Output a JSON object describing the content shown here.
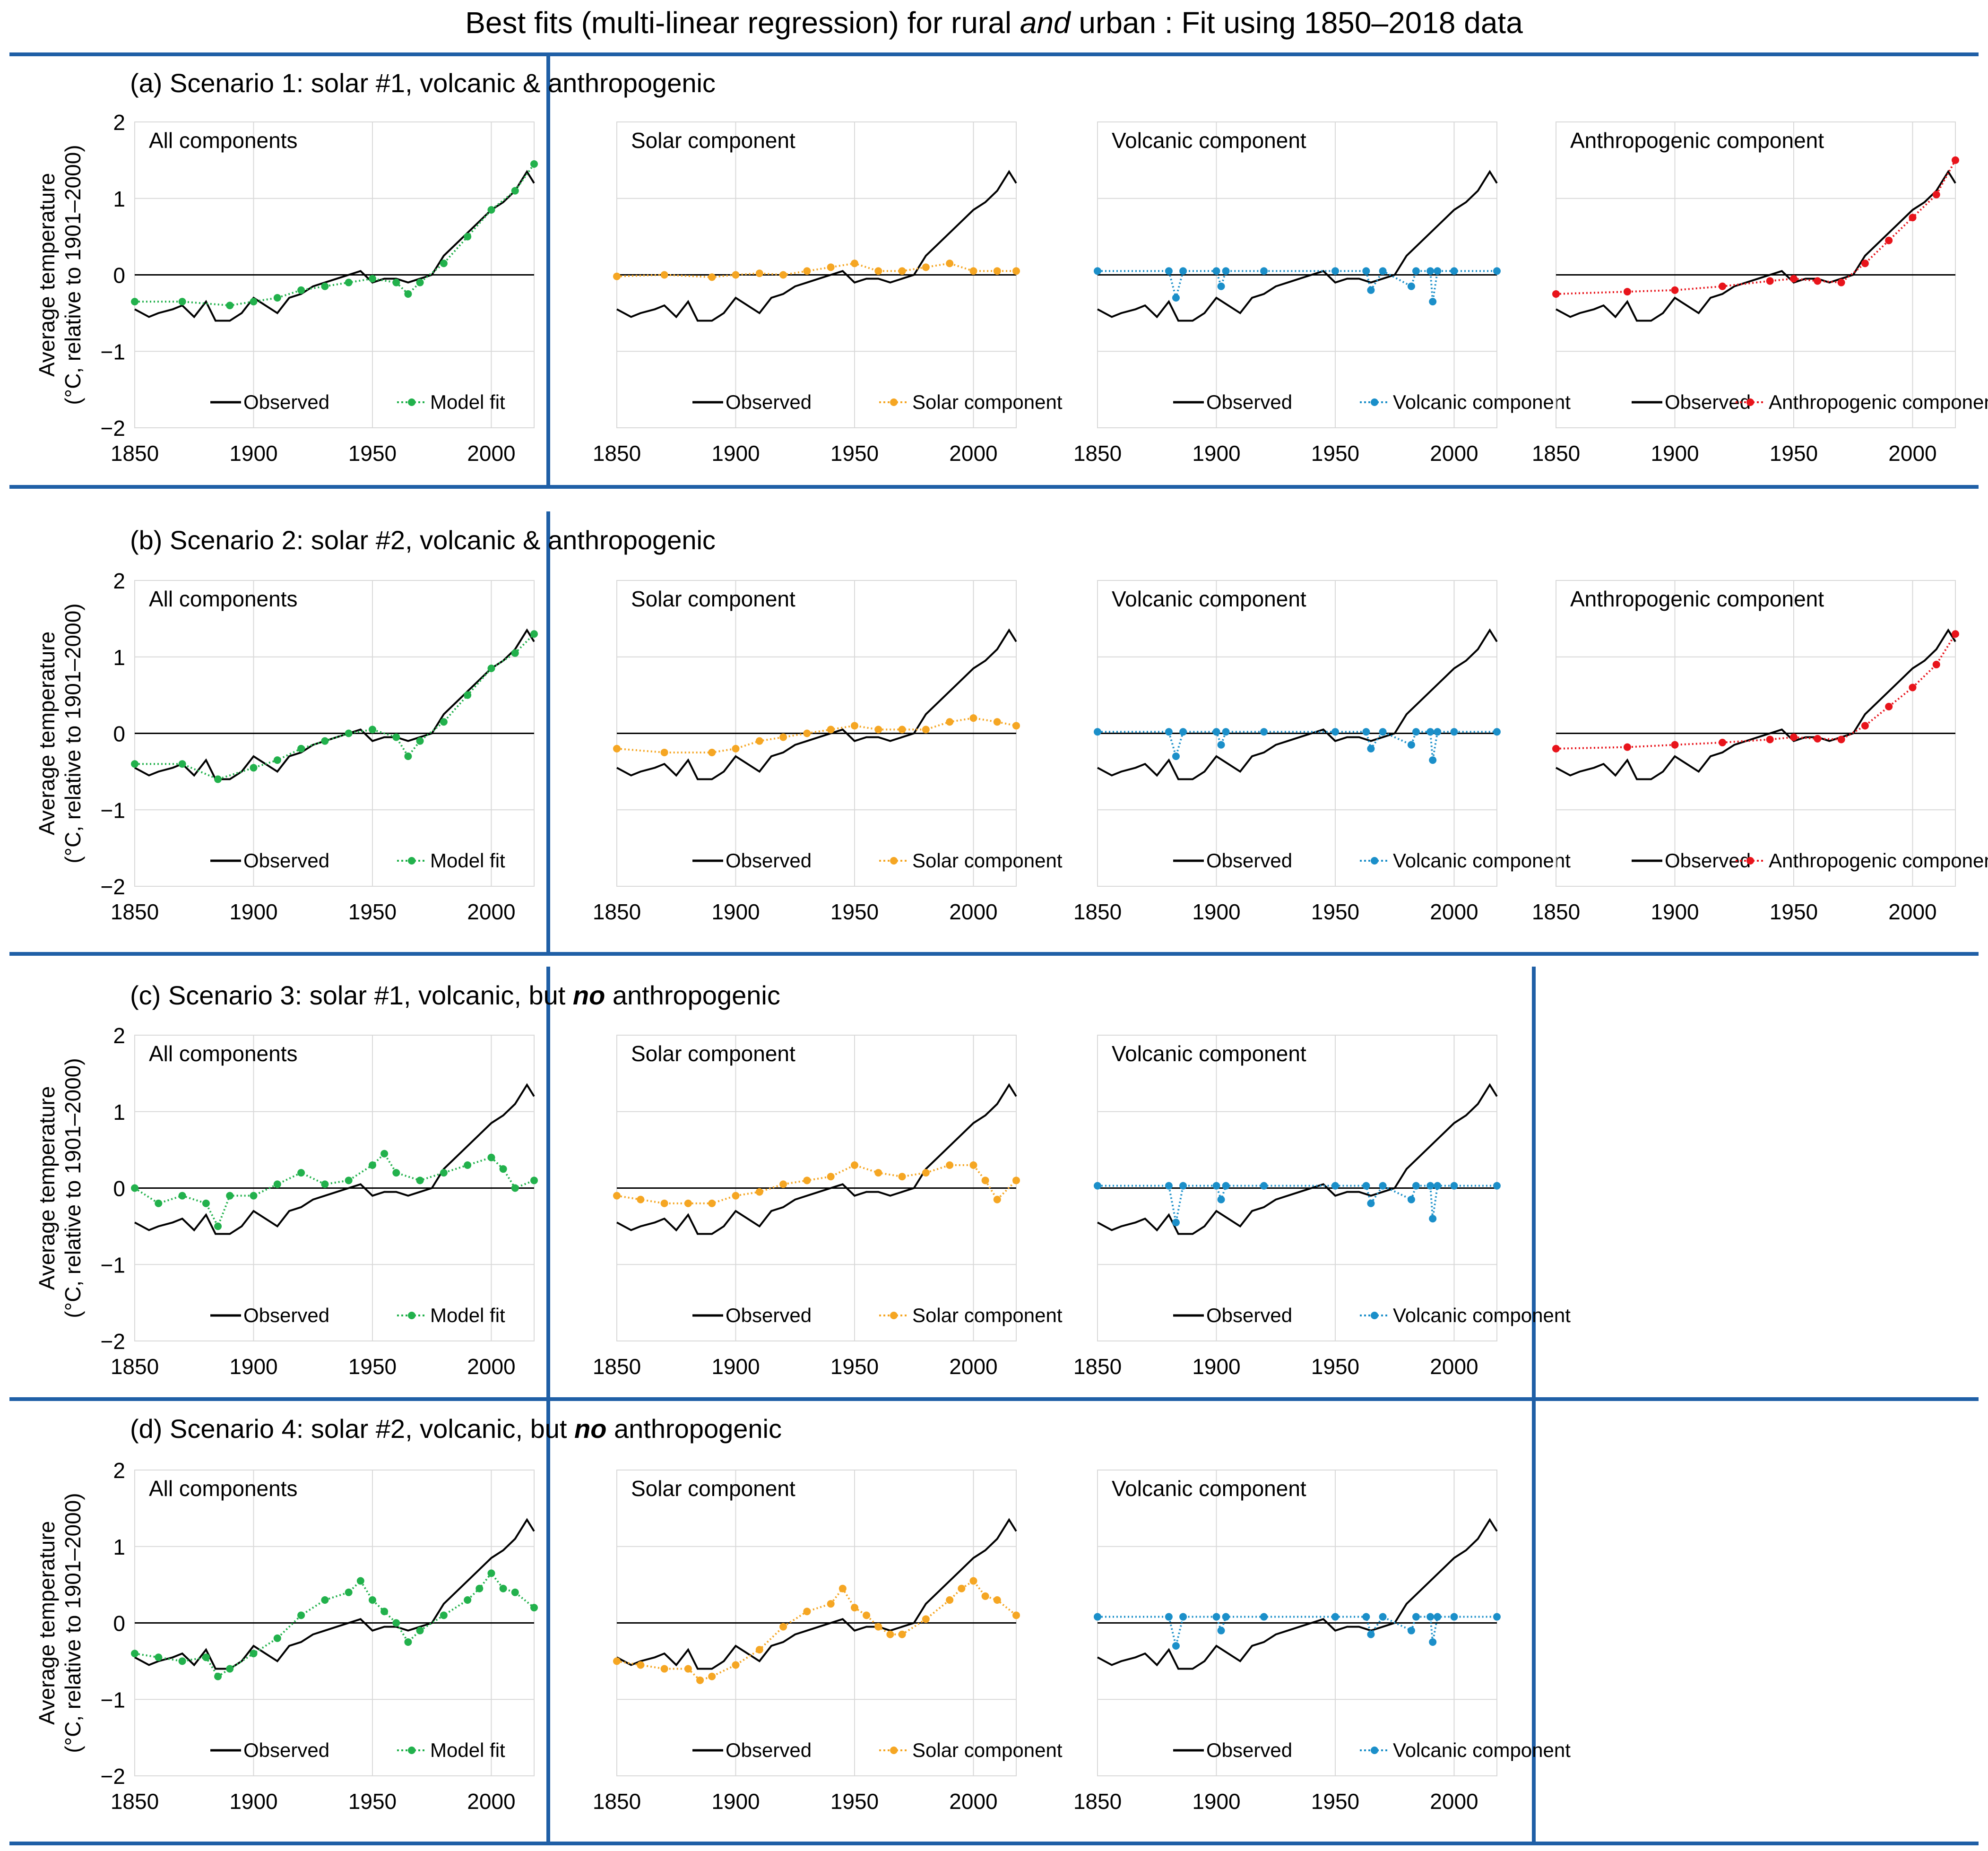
{
  "title": {
    "prefix": "Best fits (multi-linear regression) for rural ",
    "italic": "and",
    "suffix": " urban : Fit using 1850–2018 data"
  },
  "ylabel_line1": "Average temperature",
  "ylabel_line2": "(°C, relative to 1901–2000)",
  "colors": {
    "observed": "#000000",
    "model_fit": "#22b14c",
    "solar": "#f5a623",
    "volcanic": "#1b8fc9",
    "anthropogenic": "#e8141b",
    "frame": "#1f5fa6",
    "grid": "#d9d9d9"
  },
  "rows": [
    {
      "label": "(a) Scenario 1: solar #1, volcanic & anthropogenic",
      "label_pre": "",
      "label_bold": "",
      "label_post": ""
    },
    {
      "label": "(b) Scenario 2: solar #2, volcanic & anthropogenic",
      "label_pre": "",
      "label_bold": "",
      "label_post": ""
    },
    {
      "label": "",
      "label_pre": "(c) Scenario 3: solar #1, volcanic, but ",
      "label_bold": "no",
      "label_post": " anthropogenic"
    },
    {
      "label": "",
      "label_pre": "(d) Scenario 4: solar #2, volcanic, but ",
      "label_bold": "no",
      "label_post": " anthropogenic"
    }
  ],
  "chart_data": {
    "type": "line",
    "x_range": [
      1850,
      2018
    ],
    "xticks": [
      1850,
      1900,
      1950,
      2000
    ],
    "xtick_labels": [
      "1850",
      "1900",
      "1950",
      "2000"
    ],
    "ylim": [
      -2,
      2
    ],
    "yticks": [
      2,
      1,
      0,
      -1,
      -2
    ],
    "ytick_labels": [
      "2",
      "1",
      "0",
      "−1",
      "−2"
    ],
    "observed_series": {
      "name": "Observed",
      "x": [
        1850,
        1856,
        1860,
        1866,
        1870,
        1875,
        1880,
        1884,
        1890,
        1895,
        1900,
        1905,
        1910,
        1915,
        1920,
        1925,
        1930,
        1935,
        1940,
        1945,
        1950,
        1955,
        1960,
        1965,
        1970,
        1975,
        1980,
        1985,
        1990,
        1995,
        2000,
        2005,
        2010,
        2015,
        2018
      ],
      "values": [
        -0.45,
        -0.55,
        -0.5,
        -0.45,
        -0.4,
        -0.55,
        -0.35,
        -0.6,
        -0.6,
        -0.5,
        -0.3,
        -0.4,
        -0.5,
        -0.3,
        -0.25,
        -0.15,
        -0.1,
        -0.05,
        0.0,
        0.05,
        -0.1,
        -0.05,
        -0.05,
        -0.1,
        -0.05,
        0.0,
        0.25,
        0.4,
        0.55,
        0.7,
        0.85,
        0.95,
        1.1,
        1.35,
        1.2
      ]
    },
    "panels": [
      {
        "row": 0,
        "title": "All components",
        "legend": [
          "Observed",
          "Model fit"
        ],
        "series": "model_fit",
        "x": [
          1850,
          1870,
          1890,
          1900,
          1910,
          1920,
          1930,
          1940,
          1950,
          1960,
          1965,
          1970,
          1980,
          1990,
          2000,
          2010,
          2018
        ],
        "values": [
          -0.35,
          -0.35,
          -0.4,
          -0.35,
          -0.3,
          -0.2,
          -0.15,
          -0.1,
          -0.05,
          -0.1,
          -0.25,
          -0.1,
          0.15,
          0.5,
          0.85,
          1.1,
          1.45
        ]
      },
      {
        "row": 0,
        "title": "Solar component",
        "legend": [
          "Observed",
          "Solar component"
        ],
        "series": "solar",
        "x": [
          1850,
          1870,
          1890,
          1900,
          1910,
          1920,
          1930,
          1940,
          1950,
          1960,
          1970,
          1980,
          1990,
          2000,
          2010,
          2018
        ],
        "values": [
          -0.02,
          0.0,
          -0.03,
          0.0,
          0.02,
          0.0,
          0.05,
          0.1,
          0.15,
          0.05,
          0.05,
          0.1,
          0.15,
          0.05,
          0.05,
          0.05
        ]
      },
      {
        "row": 0,
        "title": "Volcanic component",
        "legend": [
          "Observed",
          "Volcanic component"
        ],
        "series": "volcanic",
        "x": [
          1850,
          1880,
          1883,
          1886,
          1900,
          1902,
          1904,
          1920,
          1950,
          1963,
          1965,
          1970,
          1982,
          1984,
          1990,
          1991,
          1993,
          2000,
          2018
        ],
        "values": [
          0.05,
          0.05,
          -0.3,
          0.05,
          0.05,
          -0.15,
          0.05,
          0.05,
          0.05,
          0.05,
          -0.2,
          0.05,
          -0.15,
          0.05,
          0.05,
          -0.35,
          0.05,
          0.05,
          0.05
        ]
      },
      {
        "row": 0,
        "title": "Anthropogenic component",
        "legend": [
          "Observed",
          "Anthropogenic component"
        ],
        "series": "anthropogenic",
        "x": [
          1850,
          1880,
          1900,
          1920,
          1940,
          1950,
          1960,
          1970,
          1980,
          1990,
          2000,
          2010,
          2018
        ],
        "values": [
          -0.25,
          -0.22,
          -0.2,
          -0.15,
          -0.08,
          -0.05,
          -0.08,
          -0.1,
          0.15,
          0.45,
          0.75,
          1.05,
          1.5
        ]
      },
      {
        "row": 1,
        "title": "All components",
        "legend": [
          "Observed",
          "Model fit"
        ],
        "series": "model_fit",
        "x": [
          1850,
          1870,
          1885,
          1900,
          1910,
          1920,
          1930,
          1940,
          1950,
          1960,
          1965,
          1970,
          1980,
          1990,
          2000,
          2010,
          2018
        ],
        "values": [
          -0.4,
          -0.4,
          -0.6,
          -0.45,
          -0.35,
          -0.2,
          -0.1,
          0.0,
          0.05,
          -0.05,
          -0.3,
          -0.1,
          0.15,
          0.5,
          0.85,
          1.05,
          1.3
        ]
      },
      {
        "row": 1,
        "title": "Solar component",
        "legend": [
          "Observed",
          "Solar component"
        ],
        "series": "solar",
        "x": [
          1850,
          1870,
          1890,
          1900,
          1910,
          1920,
          1930,
          1940,
          1950,
          1960,
          1970,
          1980,
          1990,
          2000,
          2010,
          2018
        ],
        "values": [
          -0.2,
          -0.25,
          -0.25,
          -0.2,
          -0.1,
          -0.05,
          0.0,
          0.05,
          0.1,
          0.05,
          0.05,
          0.05,
          0.15,
          0.2,
          0.15,
          0.1
        ]
      },
      {
        "row": 1,
        "title": "Volcanic component",
        "legend": [
          "Observed",
          "Volcanic component"
        ],
        "series": "volcanic",
        "x": [
          1850,
          1880,
          1883,
          1886,
          1900,
          1902,
          1904,
          1920,
          1950,
          1963,
          1965,
          1970,
          1982,
          1984,
          1990,
          1991,
          1993,
          2000,
          2018
        ],
        "values": [
          0.02,
          0.02,
          -0.3,
          0.02,
          0.02,
          -0.15,
          0.02,
          0.02,
          0.02,
          0.02,
          -0.2,
          0.02,
          -0.15,
          0.02,
          0.02,
          -0.35,
          0.02,
          0.02,
          0.02
        ]
      },
      {
        "row": 1,
        "title": "Anthropogenic component",
        "legend": [
          "Observed",
          "Anthropogenic component"
        ],
        "series": "anthropogenic",
        "x": [
          1850,
          1880,
          1900,
          1920,
          1940,
          1950,
          1960,
          1970,
          1980,
          1990,
          2000,
          2010,
          2018
        ],
        "values": [
          -0.2,
          -0.18,
          -0.15,
          -0.12,
          -0.08,
          -0.05,
          -0.07,
          -0.08,
          0.1,
          0.35,
          0.6,
          0.9,
          1.3
        ]
      },
      {
        "row": 2,
        "title": "All components",
        "legend": [
          "Observed",
          "Model fit"
        ],
        "series": "model_fit",
        "x": [
          1850,
          1860,
          1870,
          1880,
          1885,
          1890,
          1900,
          1910,
          1920,
          1930,
          1940,
          1950,
          1955,
          1960,
          1970,
          1980,
          1990,
          2000,
          2005,
          2010,
          2018
        ],
        "values": [
          0.0,
          -0.2,
          -0.1,
          -0.2,
          -0.5,
          -0.1,
          -0.1,
          0.05,
          0.2,
          0.05,
          0.1,
          0.3,
          0.45,
          0.2,
          0.1,
          0.2,
          0.3,
          0.4,
          0.25,
          0.0,
          0.1
        ]
      },
      {
        "row": 2,
        "title": "Solar component",
        "legend": [
          "Observed",
          "Solar component"
        ],
        "series": "solar",
        "x": [
          1850,
          1860,
          1870,
          1880,
          1890,
          1900,
          1910,
          1920,
          1930,
          1940,
          1950,
          1960,
          1970,
          1980,
          1990,
          2000,
          2005,
          2010,
          2018
        ],
        "values": [
          -0.1,
          -0.15,
          -0.2,
          -0.2,
          -0.2,
          -0.1,
          -0.05,
          0.05,
          0.1,
          0.15,
          0.3,
          0.2,
          0.15,
          0.2,
          0.3,
          0.3,
          0.1,
          -0.15,
          0.1
        ]
      },
      {
        "row": 2,
        "title": "Volcanic component",
        "legend": [
          "Observed",
          "Volcanic component"
        ],
        "series": "volcanic",
        "x": [
          1850,
          1880,
          1883,
          1886,
          1900,
          1902,
          1904,
          1920,
          1950,
          1963,
          1965,
          1970,
          1982,
          1984,
          1990,
          1991,
          1993,
          2000,
          2018
        ],
        "values": [
          0.03,
          0.03,
          -0.45,
          0.03,
          0.03,
          -0.15,
          0.03,
          0.03,
          0.03,
          0.03,
          -0.2,
          0.03,
          -0.15,
          0.03,
          0.03,
          -0.4,
          0.03,
          0.03,
          0.03
        ]
      },
      {
        "row": 3,
        "title": "All components",
        "legend": [
          "Observed",
          "Model fit"
        ],
        "series": "model_fit",
        "x": [
          1850,
          1860,
          1870,
          1880,
          1885,
          1890,
          1900,
          1910,
          1920,
          1930,
          1940,
          1945,
          1950,
          1955,
          1960,
          1965,
          1970,
          1980,
          1990,
          1995,
          2000,
          2005,
          2010,
          2018
        ],
        "values": [
          -0.4,
          -0.45,
          -0.5,
          -0.45,
          -0.7,
          -0.6,
          -0.4,
          -0.2,
          0.1,
          0.3,
          0.4,
          0.55,
          0.3,
          0.15,
          0.0,
          -0.25,
          -0.1,
          0.1,
          0.3,
          0.45,
          0.65,
          0.45,
          0.4,
          0.2
        ]
      },
      {
        "row": 3,
        "title": "Solar component",
        "legend": [
          "Observed",
          "Solar component"
        ],
        "series": "solar",
        "x": [
          1850,
          1860,
          1870,
          1880,
          1885,
          1890,
          1900,
          1910,
          1920,
          1930,
          1940,
          1945,
          1950,
          1955,
          1960,
          1965,
          1970,
          1980,
          1990,
          1995,
          2000,
          2005,
          2010,
          2018
        ],
        "values": [
          -0.5,
          -0.55,
          -0.6,
          -0.6,
          -0.75,
          -0.7,
          -0.55,
          -0.35,
          -0.05,
          0.15,
          0.25,
          0.45,
          0.2,
          0.1,
          -0.05,
          -0.15,
          -0.15,
          0.05,
          0.3,
          0.45,
          0.55,
          0.35,
          0.3,
          0.1
        ]
      },
      {
        "row": 3,
        "title": "Volcanic component",
        "legend": [
          "Observed",
          "Volcanic component"
        ],
        "series": "volcanic",
        "x": [
          1850,
          1880,
          1883,
          1886,
          1900,
          1902,
          1904,
          1920,
          1950,
          1963,
          1965,
          1970,
          1982,
          1984,
          1990,
          1991,
          1993,
          2000,
          2018
        ],
        "values": [
          0.08,
          0.08,
          -0.3,
          0.08,
          0.08,
          -0.1,
          0.08,
          0.08,
          0.08,
          0.08,
          -0.15,
          0.08,
          -0.1,
          0.08,
          0.08,
          -0.25,
          0.08,
          0.08,
          0.08
        ]
      }
    ]
  }
}
